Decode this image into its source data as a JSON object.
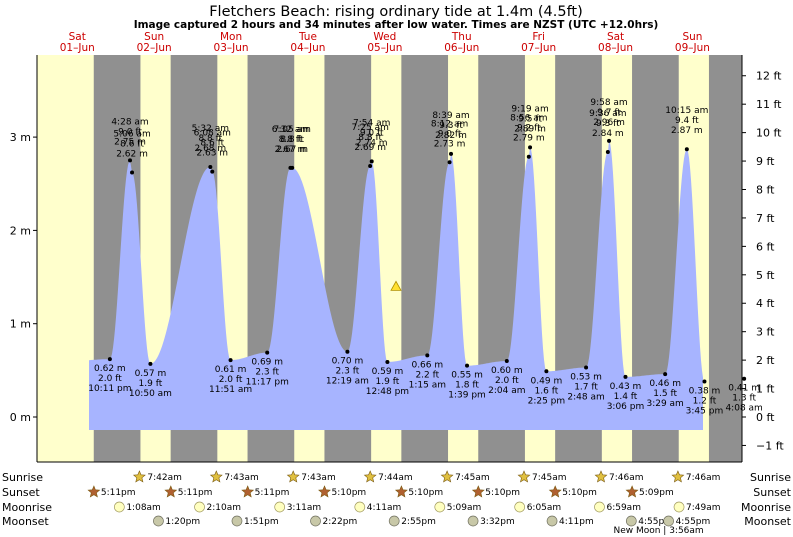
{
  "chart_data": {
    "type": "area",
    "title": "Fletchers Beach: rising  ordinary tide at 1.4m (4.5ft)",
    "subtitle": "Image captured 2 hours and 34 minutes after low water. Times are NZST (UTC +12.0hrs)",
    "y_left_label_unit": "m",
    "y_left_ticks": [
      "0 m",
      "1 m",
      "2 m",
      "3 m"
    ],
    "y_right_ticks": [
      "−1 ft",
      "0 ft",
      "1 ft",
      "2 ft",
      "3 ft",
      "4 ft",
      "5 ft",
      "6 ft",
      "7 ft",
      "8 ft",
      "9 ft",
      "10 ft",
      "11 ft",
      "12 ft"
    ],
    "ylim_m": [
      -1.35,
      4.05
    ],
    "days": [
      {
        "dow": "Sat",
        "date": "01–Jun"
      },
      {
        "dow": "Sun",
        "date": "02–Jun"
      },
      {
        "dow": "Mon",
        "date": "03–Jun"
      },
      {
        "dow": "Tue",
        "date": "04–Jun"
      },
      {
        "dow": "Wed",
        "date": "05–Jun"
      },
      {
        "dow": "Thu",
        "date": "06–Jun"
      },
      {
        "dow": "Fri",
        "date": "07–Jun"
      },
      {
        "dow": "Sat",
        "date": "08–Jun"
      },
      {
        "dow": "Sun",
        "date": "09–Jun"
      }
    ],
    "high_tides": [
      {
        "time": "4:28 am",
        "ft": "9.0 ft",
        "m": 2.75,
        "m_label": "2.75 m",
        "day": 1
      },
      {
        "time": "5:06 am",
        "ft": "8.6 ft",
        "m": 2.62,
        "m_label": "2.62 m",
        "day": 2
      },
      {
        "time": "5:32 am",
        "ft": "8.8 ft",
        "m": 2.68,
        "m_label": "2.68 m",
        "day": 3
      },
      {
        "time": "6:08 am",
        "ft": "8.6 ft",
        "m": 2.63,
        "m_label": "2.63 m",
        "day": 4
      },
      {
        "time": "6:32 am",
        "ft": "8.8 ft",
        "m": 2.67,
        "m_label": "2.67 m",
        "day": 5
      },
      {
        "time": "7:05 am",
        "ft": "8.8 ft",
        "m": 2.67,
        "m_label": "2.67 m",
        "day": 6
      },
      {
        "time": "7:25 am",
        "ft": "8.8 ft",
        "m": 2.69,
        "m_label": "2.69 m",
        "day": 7
      },
      {
        "time": "7:54 am",
        "ft": "9.0 ft",
        "m": 2.74,
        "m_label": "2.74 m",
        "day": 8
      },
      {
        "time": "8:12 am",
        "ft": "9.0 ft",
        "m": 2.73,
        "m_label": "2.73 m",
        "day": 9
      },
      {
        "time": "8:39 am",
        "ft": "9.3 ft",
        "m": 2.82,
        "m_label": "2.82 m",
        "day": 10
      },
      {
        "time": "8:56 am",
        "ft": "9.2 ft",
        "m": 2.79,
        "m_label": "2.79 m",
        "day": 11
      },
      {
        "time": "9:19 am",
        "ft": "9.5 ft",
        "m": 2.89,
        "m_label": "2.89 m",
        "day": 12
      },
      {
        "time": "9:36 am",
        "ft": "9.3 ft",
        "m": 2.84,
        "m_label": "2.84 m",
        "day": 13
      },
      {
        "time": "9:58 am",
        "ft": "9.7 ft",
        "m": 2.96,
        "m_label": "2.96 m",
        "day": 14
      },
      {
        "time": "10:15 am",
        "ft": "9.4 ft",
        "m": 2.87,
        "m_label": "2.87 m",
        "day": 15
      }
    ],
    "low_tides": [
      {
        "time": "10:11 pm",
        "ft": "2.0 ft",
        "m": 0.62,
        "m_label": "0.62 m"
      },
      {
        "time": "10:50 am",
        "ft": "1.9 ft",
        "m": 0.57,
        "m_label": "0.57 m"
      },
      {
        "time": "11:17 pm",
        "ft": "2.3 ft",
        "m": 0.69,
        "m_label": "0.69 m"
      },
      {
        "time": "11:51 am",
        "ft": "2.0 ft",
        "m": 0.61,
        "m_label": "0.61 m"
      },
      {
        "time": "12:19 am",
        "ft": "2.3 ft",
        "m": 0.7,
        "m_label": "0.70 m"
      },
      {
        "time": "12:48 pm",
        "ft": "1.9 ft",
        "m": 0.59,
        "m_label": "0.59 m"
      },
      {
        "time": "1:15 am",
        "ft": "2.2 ft",
        "m": 0.66,
        "m_label": "0.66 m"
      },
      {
        "time": "1:39 pm",
        "ft": "1.8 ft",
        "m": 0.55,
        "m_label": "0.55 m"
      },
      {
        "time": "2:04 am",
        "ft": "2.0 ft",
        "m": 0.6,
        "m_label": "0.60 m"
      },
      {
        "time": "2:25 pm",
        "ft": "1.6 ft",
        "m": 0.49,
        "m_label": "0.49 m"
      },
      {
        "time": "2:48 am",
        "ft": "1.7 ft",
        "m": 0.53,
        "m_label": "0.53 m"
      },
      {
        "time": "3:06 pm",
        "ft": "1.4 ft",
        "m": 0.43,
        "m_label": "0.43 m"
      },
      {
        "time": "3:29 am",
        "ft": "1.5 ft",
        "m": 0.46,
        "m_label": "0.46 m"
      },
      {
        "time": "3:45 pm",
        "ft": "1.2 ft",
        "m": 0.38,
        "m_label": "0.38 m"
      },
      {
        "time": "4:08 am",
        "ft": "1.3 ft",
        "m": 0.41,
        "m_label": "0.41 m"
      }
    ],
    "current_level_m": 1.4,
    "row_labels": [
      "Sunrise",
      "Sunset",
      "Moonrise",
      "Moonset"
    ],
    "sunrise": [
      "7:42am",
      "7:43am",
      "7:43am",
      "7:44am",
      "7:45am",
      "7:45am",
      "7:46am",
      "7:46am"
    ],
    "sunset": [
      "5:11pm",
      "5:11pm",
      "5:11pm",
      "5:10pm",
      "5:10pm",
      "5:10pm",
      "5:10pm",
      "5:09pm"
    ],
    "moonrise": [
      "1:08am",
      "2:10am",
      "3:11am",
      "4:11am",
      "5:09am",
      "6:05am",
      "6:59am",
      "7:49am"
    ],
    "moonset": [
      "1:20pm",
      "1:51pm",
      "2:22pm",
      "2:55pm",
      "3:32pm",
      "4:11pm",
      "4:55pm"
    ],
    "new_moon": "New Moon | 3:56am",
    "colors": {
      "water": "#a7b4ff",
      "day": "#ffffcc",
      "night": "#909090",
      "day_text": "#cc0000",
      "star": "#e0c040",
      "sunset_star": "#b06030",
      "moon": "#ffffc0",
      "moonset": "#c8c8a8"
    }
  }
}
